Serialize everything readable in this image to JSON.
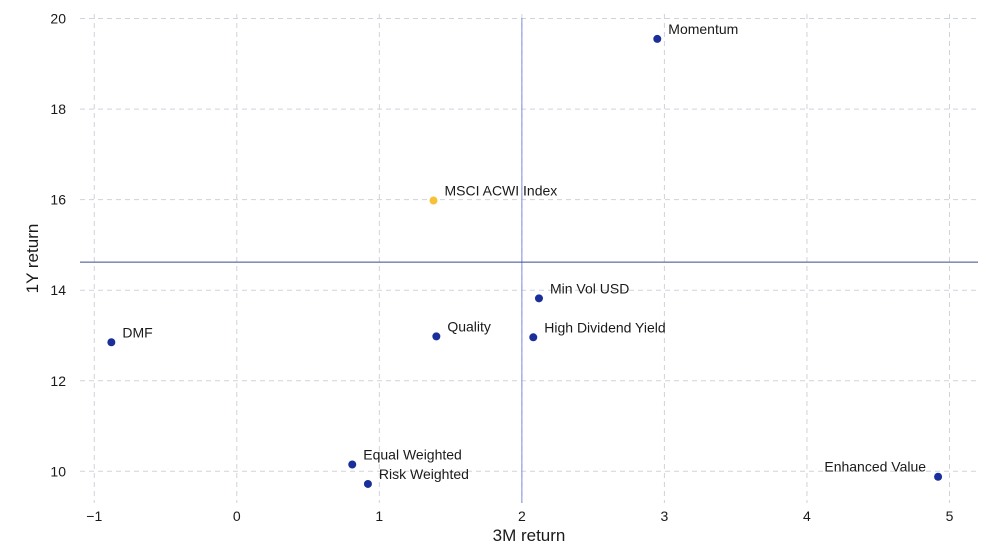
{
  "chart_data": {
    "type": "scatter",
    "title": "",
    "xlabel": "3M return",
    "ylabel": "1Y return",
    "xlim": [
      -1.1,
      5.2
    ],
    "ylim": [
      9.3,
      20.1
    ],
    "x_ticks": [
      -1,
      0,
      1,
      2,
      3,
      4,
      5
    ],
    "x_tick_labels": [
      "−1",
      "0",
      "1",
      "2",
      "3",
      "4",
      "5"
    ],
    "y_ticks": [
      10,
      12,
      14,
      16,
      18,
      20
    ],
    "y_tick_labels": [
      "10",
      "12",
      "14",
      "16",
      "18",
      "20"
    ],
    "grid": true,
    "reference_lines": {
      "vertical_x": 2.0,
      "horizontal_y": 14.62
    },
    "colors": {
      "point": "#1b2f9b",
      "highlight": "#f6c136",
      "vline": "#7a8ee0",
      "hline": "#3a4a8a"
    },
    "points": [
      {
        "label": "Momentum",
        "x": 2.95,
        "y": 19.55,
        "highlight": false,
        "label_side": "right"
      },
      {
        "label": "MSCI ACWI Index",
        "x": 1.38,
        "y": 15.98,
        "highlight": true,
        "label_side": "right"
      },
      {
        "label": "Min Vol USD",
        "x": 2.12,
        "y": 13.82,
        "highlight": false,
        "label_side": "right"
      },
      {
        "label": "Quality",
        "x": 1.4,
        "y": 12.98,
        "highlight": false,
        "label_side": "right"
      },
      {
        "label": "High Dividend Yield",
        "x": 2.08,
        "y": 12.96,
        "highlight": false,
        "label_side": "right"
      },
      {
        "label": "DMF",
        "x": -0.88,
        "y": 12.85,
        "highlight": false,
        "label_side": "right"
      },
      {
        "label": "Equal Weighted",
        "x": 0.81,
        "y": 10.15,
        "highlight": false,
        "label_side": "right"
      },
      {
        "label": "Risk Weighted",
        "x": 0.92,
        "y": 9.72,
        "highlight": false,
        "label_side": "right"
      },
      {
        "label": "Enhanced Value",
        "x": 4.92,
        "y": 9.88,
        "highlight": false,
        "label_side": "left"
      }
    ]
  }
}
